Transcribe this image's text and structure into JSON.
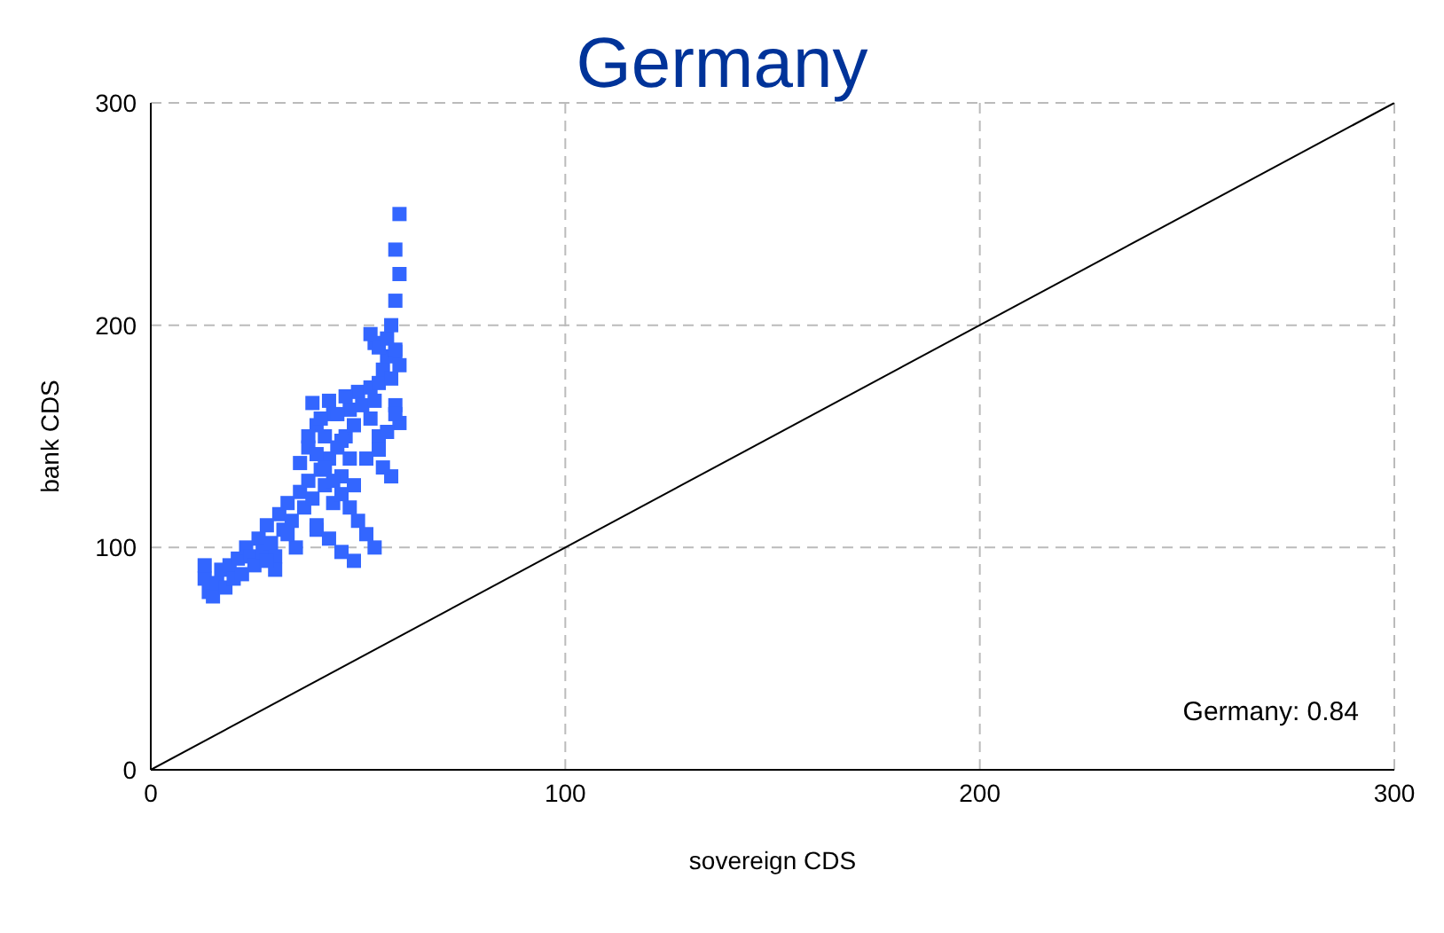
{
  "chart_data": {
    "type": "scatter",
    "title": "Germany",
    "xlabel": "sovereign CDS",
    "ylabel": "bank CDS",
    "xlim": [
      0,
      300
    ],
    "ylim": [
      0,
      300
    ],
    "xticks": [
      0,
      100,
      200,
      300
    ],
    "yticks": [
      0,
      100,
      200,
      300
    ],
    "grid": true,
    "marker": "square",
    "annotations": [
      "Germany: 0.84"
    ],
    "series": [
      {
        "color": "#3366ff",
        "x": [
          13,
          14,
          15,
          13,
          16,
          17,
          18,
          19,
          20,
          21,
          22,
          23,
          24,
          25,
          26,
          27,
          28,
          29,
          30,
          31,
          32,
          33,
          34,
          35,
          30,
          28,
          33,
          36,
          37,
          38,
          39,
          40,
          41,
          42,
          43,
          44,
          45,
          46,
          47,
          48,
          49,
          36,
          38,
          40,
          42,
          44,
          46,
          48,
          50,
          39,
          41,
          43,
          45,
          47,
          49,
          51,
          53,
          38,
          40,
          42,
          44,
          46,
          48,
          50,
          52,
          54,
          40,
          43,
          46,
          49,
          52,
          55,
          53,
          54,
          55,
          56,
          57,
          58,
          59,
          60,
          55,
          57,
          59,
          58,
          56,
          54,
          53,
          55,
          57,
          59,
          60,
          59,
          58,
          59,
          60,
          59,
          60
        ],
        "values": [
          86,
          80,
          78,
          92,
          84,
          90,
          82,
          92,
          86,
          95,
          88,
          100,
          96,
          92,
          104,
          98,
          110,
          102,
          96,
          115,
          108,
          120,
          112,
          100,
          90,
          94,
          106,
          125,
          118,
          130,
          122,
          108,
          135,
          128,
          140,
          120,
          145,
          132,
          150,
          140,
          128,
          138,
          145,
          155,
          150,
          160,
          148,
          162,
          170,
          165,
          158,
          166,
          160,
          168,
          155,
          164,
          172,
          150,
          142,
          136,
          130,
          124,
          118,
          112,
          106,
          100,
          110,
          104,
          98,
          94,
          140,
          150,
          158,
          166,
          174,
          180,
          186,
          176,
          164,
          156,
          144,
          152,
          160,
          132,
          136,
          192,
          196,
          190,
          194,
          188,
          182,
          189,
          200,
          211,
          223,
          234,
          250
        ]
      },
      {
        "type": "line",
        "marker": "none",
        "color": "#000000",
        "x": [
          0,
          300
        ],
        "values": [
          0,
          300
        ]
      }
    ]
  }
}
